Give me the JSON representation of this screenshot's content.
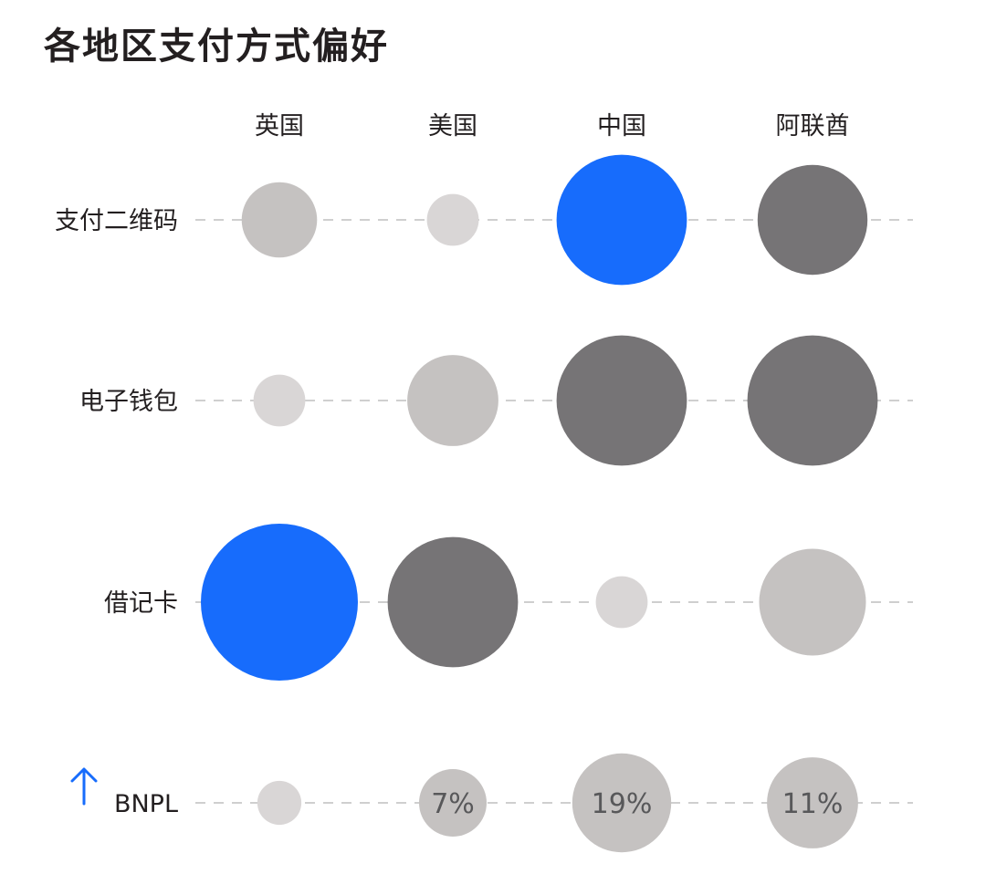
{
  "chart_data": {
    "type": "bubble-matrix",
    "title": "各地区支付方式偏好",
    "columns": [
      "英国",
      "美国",
      "中国",
      "阿联酋"
    ],
    "rows": [
      {
        "label": "支付二维码",
        "highlight": false,
        "cells": [
          {
            "size": 0.48,
            "level": "light",
            "label": ""
          },
          {
            "size": 0.33,
            "level": "lighter",
            "label": ""
          },
          {
            "size": 0.83,
            "level": "accent",
            "label": ""
          },
          {
            "size": 0.7,
            "level": "dark",
            "label": ""
          }
        ]
      },
      {
        "label": "电子钱包",
        "highlight": false,
        "cells": [
          {
            "size": 0.33,
            "level": "lighter",
            "label": ""
          },
          {
            "size": 0.58,
            "level": "light",
            "label": ""
          },
          {
            "size": 0.83,
            "level": "dark",
            "label": ""
          },
          {
            "size": 0.83,
            "level": "dark",
            "label": ""
          }
        ]
      },
      {
        "label": "借记卡",
        "highlight": false,
        "cells": [
          {
            "size": 1.0,
            "level": "accent",
            "label": ""
          },
          {
            "size": 0.83,
            "level": "dark",
            "label": ""
          },
          {
            "size": 0.33,
            "level": "lighter",
            "label": ""
          },
          {
            "size": 0.68,
            "level": "light",
            "label": ""
          }
        ]
      },
      {
        "label": "BNPL",
        "highlight": true,
        "cells": [
          {
            "size": 0.28,
            "level": "lighter",
            "label": ""
          },
          {
            "size": 0.43,
            "level": "light",
            "label": "7%"
          },
          {
            "size": 0.63,
            "level": "light",
            "label": "19%"
          },
          {
            "size": 0.58,
            "level": "light",
            "label": "11%"
          }
        ]
      }
    ],
    "colors": {
      "accent": "#176cfc",
      "dark": "#767476",
      "light": "#c5c2c1",
      "lighter": "#d9d6d6",
      "gridline": "#cfcfcf",
      "arrow": "#176cfc"
    },
    "legend": "none",
    "grid": "dashed-row-lines"
  }
}
